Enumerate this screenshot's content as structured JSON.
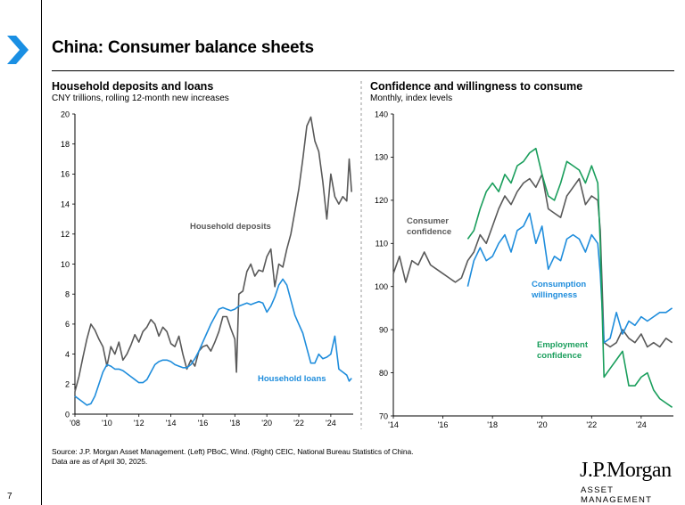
{
  "page": {
    "title": "China: Consumer balance sheets",
    "slide_number": "7",
    "source_line1": "Source: J.P. Morgan Asset Management. (Left) PBoC, Wind. (Right) CEIC, National Bureau Statistics of China.",
    "source_line2": "Data are as of April 30, 2025.",
    "logo": "J.P.Morgan",
    "logo_sub": "ASSET MANAGEMENT"
  },
  "chart_data": [
    {
      "type": "line",
      "title": "Household deposits and loans",
      "subtitle": "CNY trillions, rolling 12-month new increases",
      "xlim": [
        2008,
        2025.4
      ],
      "ylim": [
        0,
        20
      ],
      "ytick_values": [
        0,
        2,
        4,
        6,
        8,
        10,
        12,
        14,
        16,
        18,
        20
      ],
      "ytick_labels": [
        "0",
        "2",
        "4",
        "6",
        "8",
        "10",
        "12",
        "14",
        "16",
        "18",
        "20"
      ],
      "xtick_values": [
        2008,
        2010,
        2012,
        2014,
        2016,
        2018,
        2020,
        2022,
        2024
      ],
      "xtick_labels": [
        "'08",
        "'10",
        "'12",
        "'14",
        "'16",
        "'18",
        "'20",
        "'22",
        "'24"
      ],
      "series": [
        {
          "name": "Household deposits",
          "color": "#595959",
          "x": [
            2008.0,
            2008.25,
            2008.5,
            2008.75,
            2009.0,
            2009.25,
            2009.5,
            2009.75,
            2010.0,
            2010.25,
            2010.5,
            2010.75,
            2011.0,
            2011.25,
            2011.5,
            2011.75,
            2012.0,
            2012.25,
            2012.5,
            2012.75,
            2013.0,
            2013.25,
            2013.5,
            2013.75,
            2014.0,
            2014.25,
            2014.5,
            2014.75,
            2015.0,
            2015.25,
            2015.5,
            2015.75,
            2016.0,
            2016.25,
            2016.5,
            2016.75,
            2017.0,
            2017.25,
            2017.5,
            2017.75,
            2018.0,
            2018.1,
            2018.25,
            2018.5,
            2018.75,
            2019.0,
            2019.25,
            2019.5,
            2019.75,
            2020.0,
            2020.25,
            2020.5,
            2020.75,
            2021.0,
            2021.25,
            2021.5,
            2021.75,
            2022.0,
            2022.25,
            2022.5,
            2022.75,
            2023.0,
            2023.25,
            2023.5,
            2023.75,
            2024.0,
            2024.25,
            2024.5,
            2024.75,
            2025.0,
            2025.15,
            2025.3
          ],
          "values": [
            1.5,
            2.5,
            3.8,
            5.0,
            6.0,
            5.6,
            5.0,
            4.5,
            3.2,
            4.5,
            4.0,
            4.8,
            3.6,
            4.0,
            4.6,
            5.3,
            4.8,
            5.5,
            5.8,
            6.3,
            6.0,
            5.2,
            5.8,
            5.5,
            4.7,
            4.5,
            5.2,
            4.0,
            3.0,
            3.6,
            3.2,
            4.2,
            4.5,
            4.6,
            4.2,
            4.8,
            5.5,
            6.5,
            6.5,
            5.7,
            5.0,
            2.8,
            8.0,
            8.2,
            9.5,
            10.0,
            9.2,
            9.6,
            9.5,
            10.5,
            11.0,
            8.5,
            10.0,
            9.8,
            11.0,
            12.0,
            13.5,
            15.0,
            17.0,
            19.2,
            19.8,
            18.2,
            17.5,
            15.5,
            13.0,
            16.0,
            14.5,
            14.0,
            14.5,
            14.2,
            17.0,
            14.8
          ],
          "label": "Household deposits"
        },
        {
          "name": "Household loans",
          "color": "#1F8DDC",
          "x": [
            2008.0,
            2008.25,
            2008.5,
            2008.75,
            2009.0,
            2009.25,
            2009.5,
            2009.75,
            2010.0,
            2010.25,
            2010.5,
            2010.75,
            2011.0,
            2011.25,
            2011.5,
            2011.75,
            2012.0,
            2012.25,
            2012.5,
            2012.75,
            2013.0,
            2013.25,
            2013.5,
            2013.75,
            2014.0,
            2014.25,
            2014.5,
            2014.75,
            2015.0,
            2015.25,
            2015.5,
            2015.75,
            2016.0,
            2016.25,
            2016.5,
            2016.75,
            2017.0,
            2017.25,
            2017.5,
            2017.75,
            2018.0,
            2018.25,
            2018.5,
            2018.75,
            2019.0,
            2019.25,
            2019.5,
            2019.75,
            2020.0,
            2020.25,
            2020.5,
            2020.75,
            2021.0,
            2021.25,
            2021.5,
            2021.75,
            2022.0,
            2022.25,
            2022.5,
            2022.75,
            2023.0,
            2023.25,
            2023.5,
            2023.75,
            2024.0,
            2024.25,
            2024.5,
            2024.75,
            2025.0,
            2025.15,
            2025.3
          ],
          "values": [
            1.2,
            1.0,
            0.8,
            0.6,
            0.7,
            1.2,
            2.0,
            2.8,
            3.3,
            3.2,
            3.0,
            3.0,
            2.9,
            2.7,
            2.5,
            2.3,
            2.1,
            2.1,
            2.3,
            2.8,
            3.3,
            3.5,
            3.6,
            3.6,
            3.5,
            3.3,
            3.2,
            3.1,
            3.1,
            3.3,
            3.7,
            4.2,
            4.8,
            5.4,
            6.0,
            6.5,
            7.0,
            7.1,
            7.0,
            6.9,
            7.0,
            7.2,
            7.3,
            7.4,
            7.3,
            7.4,
            7.5,
            7.4,
            6.8,
            7.2,
            7.8,
            8.6,
            9.0,
            8.6,
            7.6,
            6.6,
            6.0,
            5.4,
            4.4,
            3.4,
            3.4,
            4.0,
            3.7,
            3.8,
            4.0,
            5.2,
            3.0,
            2.8,
            2.6,
            2.2,
            2.4
          ],
          "label": "Household loans"
        }
      ]
    },
    {
      "type": "line",
      "title": "Confidence and willingness to consume",
      "subtitle": "Monthly, index levels",
      "xlim": [
        2014,
        2025.3
      ],
      "ylim": [
        70,
        140
      ],
      "ytick_values": [
        70,
        80,
        90,
        100,
        110,
        120,
        130,
        140
      ],
      "ytick_labels": [
        "70",
        "80",
        "90",
        "100",
        "110",
        "120",
        "130",
        "140"
      ],
      "xtick_values": [
        2014,
        2016,
        2018,
        2020,
        2022,
        2024
      ],
      "xtick_labels": [
        "'14",
        "'16",
        "'18",
        "'20",
        "'22",
        "'24"
      ],
      "series": [
        {
          "name": "Consumer confidence",
          "color": "#595959",
          "x": [
            2014.0,
            2014.25,
            2014.5,
            2014.75,
            2015.0,
            2015.25,
            2015.5,
            2015.75,
            2016.0,
            2016.25,
            2016.5,
            2016.75,
            2017.0,
            2017.25,
            2017.5,
            2017.75,
            2018.0,
            2018.25,
            2018.5,
            2018.75,
            2019.0,
            2019.25,
            2019.5,
            2019.75,
            2020.0,
            2020.25,
            2020.5,
            2020.75,
            2021.0,
            2021.25,
            2021.5,
            2021.75,
            2022.0,
            2022.25,
            2022.35,
            2022.5,
            2022.75,
            2023.0,
            2023.25,
            2023.5,
            2023.75,
            2024.0,
            2024.25,
            2024.5,
            2024.75,
            2025.0,
            2025.25
          ],
          "values": [
            103,
            107,
            101,
            106,
            105,
            108,
            105,
            104,
            103,
            102,
            101,
            102,
            106,
            108,
            112,
            110,
            114,
            118,
            121,
            119,
            122,
            124,
            125,
            123,
            126,
            118,
            117,
            116,
            121,
            123,
            125,
            119,
            121,
            120,
            113,
            87,
            86,
            87,
            90,
            88,
            87,
            89,
            86,
            87,
            86,
            88,
            87
          ],
          "label": "Consumer confidence"
        },
        {
          "name": "Consumption willingness",
          "color": "#1F8DDC",
          "x": [
            2017.0,
            2017.25,
            2017.5,
            2017.75,
            2018.0,
            2018.25,
            2018.5,
            2018.75,
            2019.0,
            2019.25,
            2019.5,
            2019.75,
            2020.0,
            2020.25,
            2020.5,
            2020.75,
            2021.0,
            2021.25,
            2021.5,
            2021.75,
            2022.0,
            2022.25,
            2022.35,
            2022.5,
            2022.75,
            2023.0,
            2023.25,
            2023.5,
            2023.75,
            2024.0,
            2024.25,
            2024.5,
            2024.75,
            2025.0,
            2025.25
          ],
          "values": [
            100,
            106,
            109,
            106,
            107,
            110,
            112,
            108,
            113,
            114,
            117,
            110,
            114,
            104,
            107,
            106,
            111,
            112,
            111,
            108,
            112,
            110,
            103,
            87,
            88,
            94,
            89,
            92,
            91,
            93,
            92,
            93,
            94,
            94,
            95
          ],
          "label": "Consumption willingness"
        },
        {
          "name": "Employment confidence",
          "color": "#1A9E5C",
          "x": [
            2017.0,
            2017.25,
            2017.5,
            2017.75,
            2018.0,
            2018.25,
            2018.5,
            2018.75,
            2019.0,
            2019.25,
            2019.5,
            2019.75,
            2020.0,
            2020.25,
            2020.5,
            2020.75,
            2021.0,
            2021.25,
            2021.5,
            2021.75,
            2022.0,
            2022.25,
            2022.35,
            2022.5,
            2022.75,
            2023.0,
            2023.25,
            2023.5,
            2023.75,
            2024.0,
            2024.25,
            2024.5,
            2024.75,
            2025.0,
            2025.25
          ],
          "values": [
            111,
            113,
            118,
            122,
            124,
            122,
            126,
            124,
            128,
            129,
            131,
            132,
            126,
            121,
            120,
            124,
            129,
            128,
            127,
            124,
            128,
            124,
            110,
            79,
            81,
            83,
            85,
            77,
            77,
            79,
            80,
            76,
            74,
            73,
            72
          ],
          "label": "Employment confidence"
        }
      ]
    }
  ]
}
